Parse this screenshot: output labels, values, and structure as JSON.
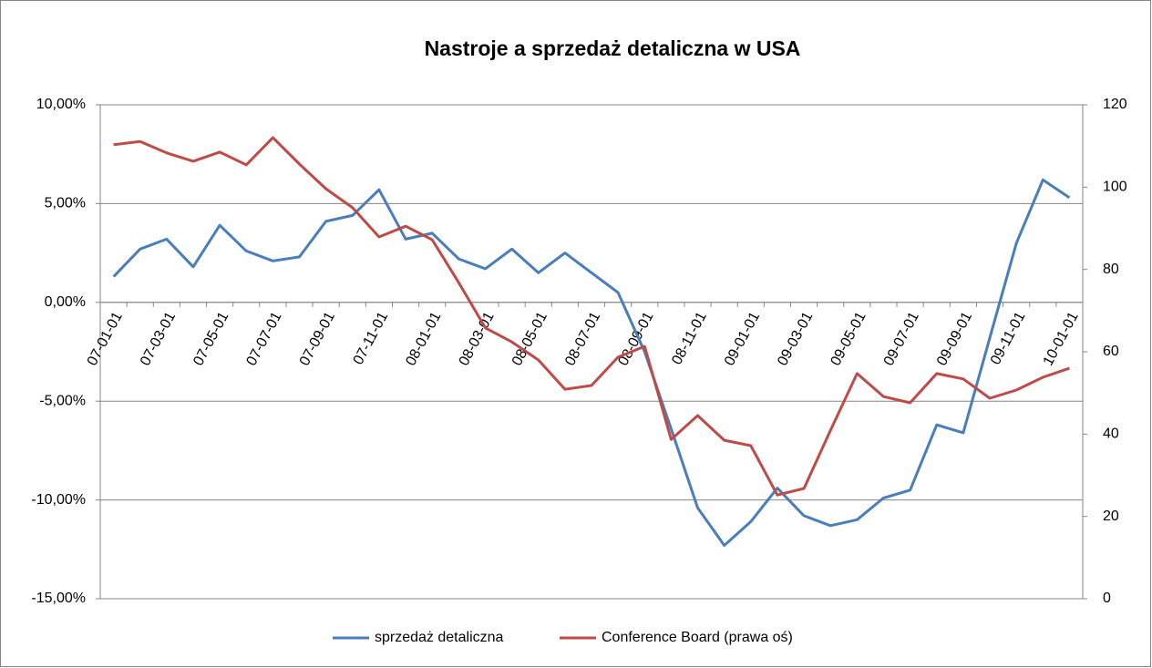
{
  "chart_data": {
    "type": "line",
    "title": "Nastroje a sprzedaż detaliczna w USA",
    "categories": [
      "07-01-01",
      null,
      "07-03-01",
      null,
      "07-05-01",
      null,
      "07-07-01",
      null,
      "07-09-01",
      null,
      "07-11-01",
      null,
      "08-01-01",
      null,
      "08-03-01",
      null,
      "08-05-01",
      null,
      "08-07-01",
      null,
      "08-09-01",
      null,
      "08-11-01",
      null,
      "09-01-01",
      null,
      "09-03-01",
      null,
      "09-05-01",
      null,
      "09-07-01",
      null,
      "09-09-01",
      null,
      "09-11-01",
      null,
      "10-01-01"
    ],
    "series": [
      {
        "name": "sprzedaż detaliczna",
        "color": "#4a7ebb",
        "values": [
          1.3,
          2.7,
          3.2,
          1.8,
          3.9,
          2.6,
          2.1,
          2.3,
          4.1,
          4.4,
          5.7,
          3.2,
          3.5,
          2.2,
          1.7,
          2.7,
          1.5,
          2.5,
          1.5,
          0.5,
          -2.5,
          -6.4,
          -10.4,
          -12.3,
          -11.1,
          -9.4,
          -10.8,
          -11.3,
          -11.0,
          -9.9,
          -9.5,
          -6.2,
          -6.6,
          -1.8,
          3.0,
          6.2,
          5.3
        ]
      },
      {
        "name": "Conference Board (prawa oś)",
        "color": "#be4b48",
        "axis": "y2",
        "values": [
          110.3,
          111.1,
          108.3,
          106.3,
          108.5,
          105.4,
          112.0,
          105.6,
          99.6,
          95.0,
          87.9,
          90.5,
          87.2,
          76.8,
          65.8,
          62.4,
          58.0,
          50.9,
          51.8,
          58.7,
          61.3,
          38.7,
          44.5,
          38.5,
          37.2,
          25.2,
          26.8,
          40.9,
          54.7,
          49.1,
          47.6,
          54.7,
          53.4,
          48.7,
          50.7,
          53.8,
          56.0
        ]
      }
    ],
    "ylim": [
      -15,
      10
    ],
    "yticks": [
      {
        "value": -15,
        "label": "-15,00%"
      },
      {
        "value": -10,
        "label": "-10,00%"
      },
      {
        "value": -5,
        "label": "-5,00%"
      },
      {
        "value": 0,
        "label": "0,00%"
      },
      {
        "value": 5,
        "label": "5,00%"
      },
      {
        "value": 10,
        "label": "10,00%"
      }
    ],
    "y2lim": [
      0,
      120
    ],
    "y2ticks": [
      0,
      20,
      40,
      60,
      80,
      100,
      120
    ],
    "grid": true,
    "legend": "bottom"
  }
}
